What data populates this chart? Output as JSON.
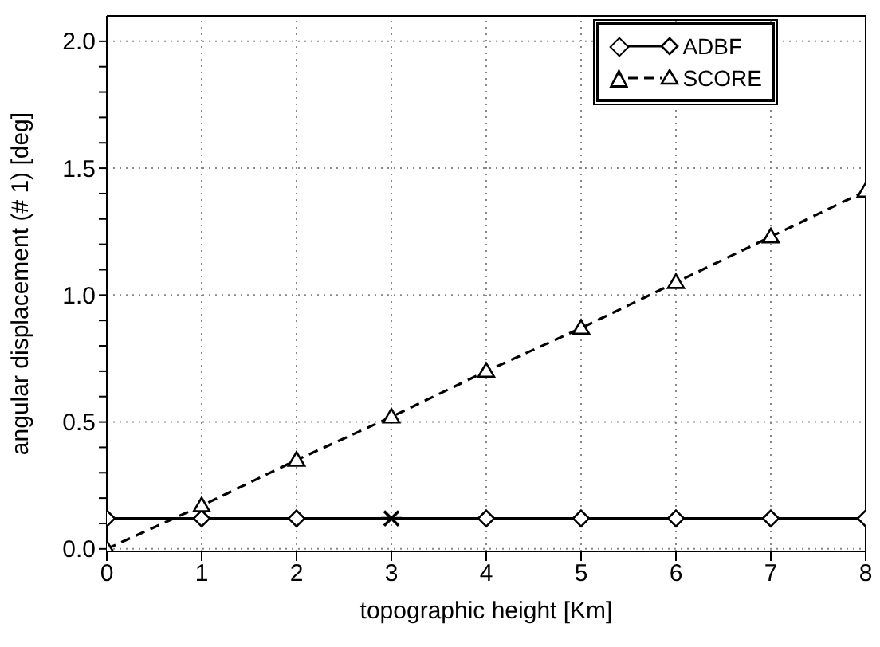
{
  "chart_data": {
    "type": "line",
    "xlabel": "topographic height [Km]",
    "ylabel": "angular displacement  (# 1) [deg]",
    "x": [
      0,
      1,
      2,
      3,
      4,
      5,
      6,
      7,
      8
    ],
    "series": [
      {
        "name": "ADBF",
        "color": "#000000",
        "marker": "diamond",
        "line_style": "solid",
        "values": [
          0.12,
          0.12,
          0.12,
          0.12,
          0.12,
          0.12,
          0.12,
          0.12,
          0.12
        ]
      },
      {
        "name": "SCORE",
        "color": "#000000",
        "marker": "triangle",
        "line_style": "dashed",
        "values": [
          0.0,
          0.17,
          0.35,
          0.52,
          0.7,
          0.87,
          1.05,
          1.23,
          1.41
        ]
      },
      {
        "type": "scatter",
        "color": "#000000",
        "marker": "cross",
        "x": [
          3
        ],
        "values": [
          0.12
        ]
      }
    ],
    "xlim": [
      0,
      8
    ],
    "xticks": [
      0,
      1,
      2,
      3,
      4,
      5,
      6,
      7,
      8
    ],
    "ylim": [
      -0.01,
      2.1
    ],
    "yticks": [
      {
        "value": 0,
        "label": "0.0"
      },
      {
        "value": 0.1,
        "label": null
      },
      {
        "value": 0.2,
        "label": null
      },
      {
        "value": 0.3,
        "label": null
      },
      {
        "value": 0.4,
        "label": null
      },
      {
        "value": 0.5,
        "label": "0.5"
      },
      {
        "value": 0.6,
        "label": null
      },
      {
        "value": 0.7,
        "label": null
      },
      {
        "value": 0.8,
        "label": null
      },
      {
        "value": 0.9,
        "label": null
      },
      {
        "value": 1,
        "label": "1.0"
      },
      {
        "value": 1.1,
        "label": null
      },
      {
        "value": 1.2,
        "label": null
      },
      {
        "value": 1.3,
        "label": null
      },
      {
        "value": 1.4,
        "label": null
      },
      {
        "value": 1.5,
        "label": "1.5"
      },
      {
        "value": 1.6,
        "label": null
      },
      {
        "value": 1.7,
        "label": null
      },
      {
        "value": 1.8,
        "label": null
      },
      {
        "value": 1.9,
        "label": null
      },
      {
        "value": 2,
        "label": "2.0"
      }
    ],
    "grid": true,
    "legend": "top right"
  }
}
